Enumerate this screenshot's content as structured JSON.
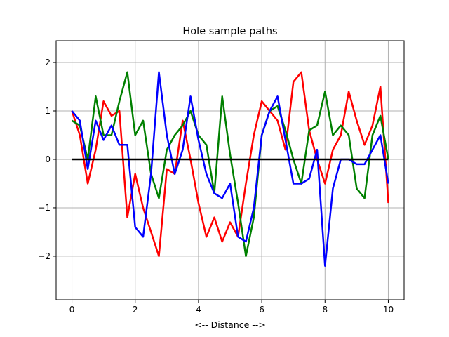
{
  "chart_data": {
    "type": "line",
    "title": "Hole sample paths",
    "xlabel": "<-- Distance -->",
    "ylabel": "",
    "xlim": [
      -0.5,
      10.5
    ],
    "ylim": [
      -2.9,
      2.45
    ],
    "grid": true,
    "xticks": [
      0,
      2,
      4,
      6,
      8,
      10
    ],
    "xtick_labels": [
      "0",
      "2",
      "4",
      "6",
      "8",
      "10"
    ],
    "yticks": [
      -2,
      -1,
      0,
      1,
      2
    ],
    "ytick_labels": [
      "−2",
      "−1",
      "0",
      "1",
      "2"
    ],
    "x": [
      0,
      0.25,
      0.5,
      0.75,
      1,
      1.25,
      1.5,
      1.75,
      2,
      2.25,
      2.5,
      2.75,
      3,
      3.25,
      3.5,
      3.75,
      4,
      4.25,
      4.5,
      4.75,
      5,
      5.25,
      5.5,
      5.75,
      6,
      6.25,
      6.5,
      6.75,
      7,
      7.25,
      7.5,
      7.75,
      8,
      8.25,
      8.5,
      8.75,
      9,
      9.25,
      9.5,
      9.75,
      10
    ],
    "series": [
      {
        "name": "red path",
        "color": "#ff0000",
        "values": [
          1.0,
          0.5,
          -0.5,
          0.2,
          1.2,
          0.9,
          1.0,
          -1.2,
          -0.3,
          -1.0,
          -1.5,
          -2.0,
          -0.2,
          -0.3,
          0.8,
          0.0,
          -0.9,
          -1.6,
          -1.2,
          -1.7,
          -1.3,
          -1.6,
          -0.5,
          0.5,
          1.2,
          1.0,
          0.8,
          0.2,
          1.6,
          1.8,
          0.6,
          0.0,
          -0.5,
          0.2,
          0.5,
          1.4,
          0.8,
          0.3,
          0.7,
          1.5,
          -0.9
        ]
      },
      {
        "name": "green path",
        "color": "#008000",
        "values": [
          0.8,
          0.7,
          0.0,
          1.3,
          0.5,
          0.5,
          1.2,
          1.8,
          0.5,
          0.8,
          -0.3,
          -0.8,
          0.2,
          0.5,
          0.7,
          1.0,
          0.5,
          0.3,
          -0.7,
          1.3,
          0.1,
          -0.9,
          -2.0,
          -1.2,
          0.5,
          1.0,
          1.1,
          0.6,
          0.0,
          -0.5,
          0.6,
          0.7,
          1.4,
          0.5,
          0.7,
          0.5,
          -0.6,
          -0.8,
          0.5,
          0.9,
          0.0
        ]
      },
      {
        "name": "blue path",
        "color": "#0000ff",
        "values": [
          1.0,
          0.8,
          -0.2,
          0.8,
          0.4,
          0.7,
          0.3,
          0.3,
          -1.4,
          -1.6,
          -0.3,
          1.8,
          0.5,
          -0.3,
          0.2,
          1.3,
          0.4,
          -0.3,
          -0.7,
          -0.8,
          -0.5,
          -1.6,
          -1.7,
          -1.0,
          0.5,
          1.0,
          1.3,
          0.4,
          -0.5,
          -0.5,
          -0.4,
          0.2,
          -2.2,
          -0.6,
          0.0,
          0.0,
          -0.1,
          -0.1,
          0.2,
          0.5,
          -0.5
        ]
      },
      {
        "name": "zero line",
        "color": "#000000",
        "values": [
          0,
          0,
          0,
          0,
          0,
          0,
          0,
          0,
          0,
          0,
          0,
          0,
          0,
          0,
          0,
          0,
          0,
          0,
          0,
          0,
          0,
          0,
          0,
          0,
          0,
          0,
          0,
          0,
          0,
          0,
          0,
          0,
          0,
          0,
          0,
          0,
          0,
          0,
          0,
          0,
          0
        ]
      }
    ]
  }
}
